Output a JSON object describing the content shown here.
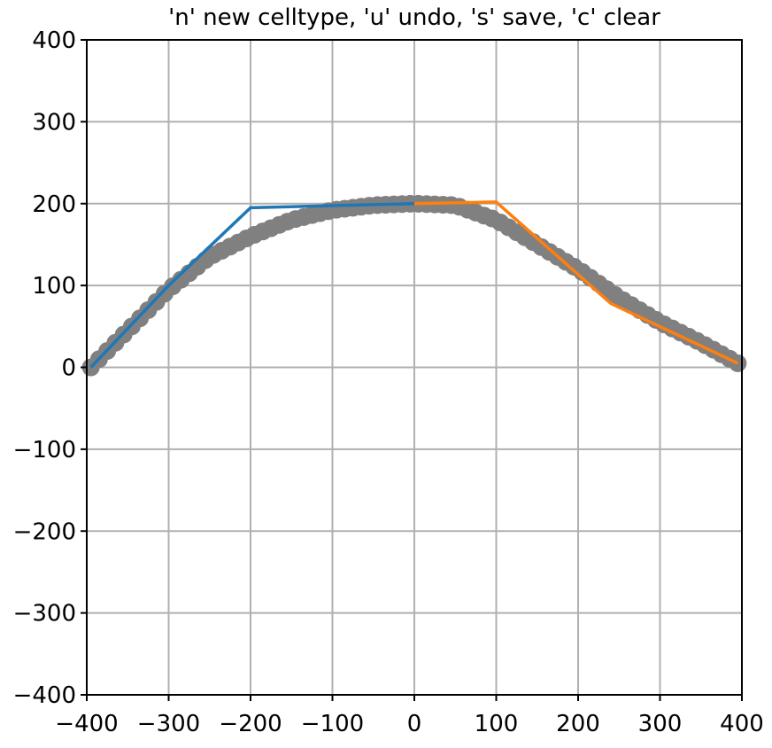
{
  "chart_data": {
    "type": "scatter",
    "title": "'n' new celltype, 'u' undo, 's' save, 'c' clear",
    "xlim": [
      -400,
      400
    ],
    "ylim": [
      -400,
      400
    ],
    "grid": true,
    "x_ticks": [
      -400,
      -300,
      -200,
      -100,
      0,
      100,
      200,
      300,
      400
    ],
    "y_ticks": [
      -400,
      -300,
      -200,
      -100,
      0,
      100,
      200,
      300,
      400
    ],
    "x_tick_labels": [
      "−400",
      "−300",
      "−200",
      "−100",
      "0",
      "100",
      "200",
      "300",
      "400"
    ],
    "y_tick_labels": [
      "−400",
      "−300",
      "−200",
      "−100",
      "0",
      "100",
      "200",
      "300",
      "400"
    ],
    "scatter": {
      "color": "#808080",
      "x_range": [
        -395,
        395
      ],
      "count": 80,
      "points": [
        [
          -395,
          0
        ],
        [
          -300,
          95
        ],
        [
          -250,
          135
        ],
        [
          -200,
          160
        ],
        [
          -150,
          180
        ],
        [
          -100,
          192
        ],
        [
          -50,
          198
        ],
        [
          0,
          200
        ],
        [
          50,
          198
        ],
        [
          100,
          180
        ],
        [
          150,
          150
        ],
        [
          200,
          120
        ],
        [
          250,
          85
        ],
        [
          300,
          55
        ],
        [
          350,
          30
        ],
        [
          395,
          5
        ]
      ]
    },
    "series": [
      {
        "color": "#1f77b4",
        "points": [
          [
            -395,
            0
          ],
          [
            -300,
            100
          ],
          [
            -200,
            195
          ],
          [
            0,
            200
          ]
        ]
      },
      {
        "color": "#ff7f0e",
        "points": [
          [
            0,
            200
          ],
          [
            100,
            202
          ],
          [
            240,
            78
          ],
          [
            395,
            5
          ]
        ]
      }
    ]
  }
}
